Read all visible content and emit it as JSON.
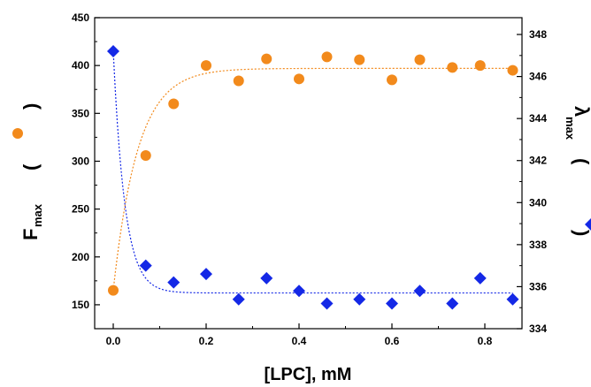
{
  "chart_data": {
    "type": "scatter",
    "xlabel": "[LPC], mM",
    "x_ticks": [
      "0.0",
      "0.2",
      "0.4",
      "0.6",
      "0.8"
    ],
    "xlim": [
      -0.04,
      0.88
    ],
    "y_left": {
      "label_main": "F",
      "label_sub": "max",
      "paren_open": "(",
      "paren_close": ")",
      "lim": [
        125,
        450
      ],
      "ticks": [
        "150",
        "200",
        "250",
        "300",
        "350",
        "400",
        "450"
      ]
    },
    "y_right": {
      "label_main": "λ",
      "label_sub": "max",
      "paren_open": "(",
      "paren_close": ")",
      "lim": [
        334,
        348.8
      ],
      "ticks": [
        "334",
        "336",
        "338",
        "340",
        "342",
        "344",
        "346",
        "348"
      ]
    },
    "series": [
      {
        "axis": "left",
        "marker": "circle",
        "color": "#f28a1c",
        "fit_line": "dotted",
        "x": [
          0.0,
          0.07,
          0.13,
          0.2,
          0.27,
          0.33,
          0.4,
          0.46,
          0.53,
          0.6,
          0.66,
          0.73,
          0.79,
          0.86
        ],
        "y": [
          165,
          306,
          360,
          400,
          384,
          407,
          386,
          409,
          406,
          385,
          406,
          398,
          400,
          395
        ],
        "fit": {
          "model": "exp_rise",
          "y0": 165,
          "a": 232,
          "k": 19
        }
      },
      {
        "axis": "right",
        "marker": "diamond",
        "color": "#1428e6",
        "fit_line": "dotted",
        "x": [
          0.0,
          0.07,
          0.13,
          0.2,
          0.27,
          0.33,
          0.4,
          0.46,
          0.53,
          0.6,
          0.66,
          0.73,
          0.79,
          0.86
        ],
        "y": [
          347.2,
          337.0,
          336.2,
          336.6,
          335.4,
          336.4,
          335.8,
          335.2,
          335.4,
          335.2,
          335.8,
          335.2,
          336.4,
          335.4
        ],
        "fit": {
          "model": "exp_decay",
          "y0": 335.7,
          "a": 11.5,
          "k": 40
        }
      }
    ]
  }
}
